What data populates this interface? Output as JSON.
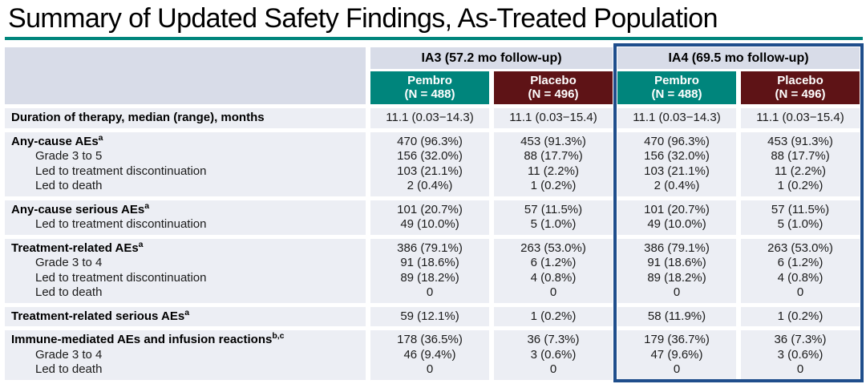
{
  "title": "Summary of Updated Safety Findings, As-Treated Population",
  "colors": {
    "accent_teal": "#00857C",
    "accent_maroon": "#5E1316",
    "header_band": "#D8DCE8",
    "row_band": "#ECEEF4",
    "highlight_border": "#1F4E8C"
  },
  "table": {
    "column_groups": [
      {
        "label": "IA3 (57.2 mo follow-up)"
      },
      {
        "label": "IA4 (69.5 mo follow-up)"
      }
    ],
    "columns": [
      {
        "name": "Pembro",
        "n": "(N = 488)",
        "color": "teal"
      },
      {
        "name": "Placebo",
        "n": "(N = 496)",
        "color": "maroon"
      },
      {
        "name": "Pembro",
        "n": "(N = 488)",
        "color": "teal"
      },
      {
        "name": "Placebo",
        "n": "(N = 496)",
        "color": "maroon"
      }
    ],
    "groups": [
      {
        "rows": [
          {
            "label": "Duration of therapy, median (range), months",
            "sup": "",
            "bold": true,
            "indent": false,
            "values": [
              "11.1 (0.03−14.3)",
              "11.1 (0.03−15.4)",
              "11.1 (0.03−14.3)",
              "11.1 (0.03−15.4)"
            ]
          }
        ]
      },
      {
        "rows": [
          {
            "label": "Any-cause AEs",
            "sup": "a",
            "bold": true,
            "indent": false,
            "values": [
              "470 (96.3%)",
              "453 (91.3%)",
              "470 (96.3%)",
              "453 (91.3%)"
            ]
          },
          {
            "label": "Grade 3 to 5",
            "sup": "",
            "bold": false,
            "indent": true,
            "values": [
              "156 (32.0%)",
              "88 (17.7%)",
              "156 (32.0%)",
              "88 (17.7%)"
            ]
          },
          {
            "label": "Led to treatment discontinuation",
            "sup": "",
            "bold": false,
            "indent": true,
            "values": [
              "103 (21.1%)",
              "11 (2.2%)",
              "103 (21.1%)",
              "11 (2.2%)"
            ]
          },
          {
            "label": "Led to death",
            "sup": "",
            "bold": false,
            "indent": true,
            "values": [
              "2 (0.4%)",
              "1 (0.2%)",
              "2 (0.4%)",
              "1 (0.2%)"
            ]
          }
        ]
      },
      {
        "rows": [
          {
            "label": "Any-cause serious AEs",
            "sup": "a",
            "bold": true,
            "indent": false,
            "values": [
              "101 (20.7%)",
              "57 (11.5%)",
              "101 (20.7%)",
              "57 (11.5%)"
            ]
          },
          {
            "label": "Led to treatment discontinuation",
            "sup": "",
            "bold": false,
            "indent": true,
            "values": [
              "49 (10.0%)",
              "5 (1.0%)",
              "49 (10.0%)",
              "5 (1.0%)"
            ]
          }
        ]
      },
      {
        "rows": [
          {
            "label": "Treatment-related AEs",
            "sup": "a",
            "bold": true,
            "indent": false,
            "values": [
              "386 (79.1%)",
              "263 (53.0%)",
              "386 (79.1%)",
              "263 (53.0%)"
            ]
          },
          {
            "label": "Grade 3 to 4",
            "sup": "",
            "bold": false,
            "indent": true,
            "values": [
              "91 (18.6%)",
              "6 (1.2%)",
              "91 (18.6%)",
              "6 (1.2%)"
            ]
          },
          {
            "label": "Led to treatment discontinuation",
            "sup": "",
            "bold": false,
            "indent": true,
            "values": [
              "89 (18.2%)",
              "4 (0.8%)",
              "89 (18.2%)",
              "4 (0.8%)"
            ]
          },
          {
            "label": "Led to death",
            "sup": "",
            "bold": false,
            "indent": true,
            "values": [
              "0",
              "0",
              "0",
              "0"
            ]
          }
        ]
      },
      {
        "rows": [
          {
            "label": "Treatment-related serious AEs",
            "sup": "a",
            "bold": true,
            "indent": false,
            "values": [
              "59 (12.1%)",
              "1 (0.2%)",
              "58 (11.9%)",
              "1 (0.2%)"
            ]
          }
        ]
      },
      {
        "rows": [
          {
            "label": "Immune-mediated AEs and infusion reactions",
            "sup": "b,c",
            "bold": true,
            "indent": false,
            "values": [
              "178 (36.5%)",
              "36 (7.3%)",
              "179 (36.7%)",
              "36 (7.3%)"
            ]
          },
          {
            "label": "Grade 3 to 4",
            "sup": "",
            "bold": false,
            "indent": true,
            "values": [
              "46 (9.4%)",
              "3 (0.6%)",
              "47 (9.6%)",
              "3 (0.6%)"
            ]
          },
          {
            "label": "Led to death",
            "sup": "",
            "bold": false,
            "indent": true,
            "values": [
              "0",
              "0",
              "0",
              "0"
            ]
          }
        ]
      }
    ]
  }
}
